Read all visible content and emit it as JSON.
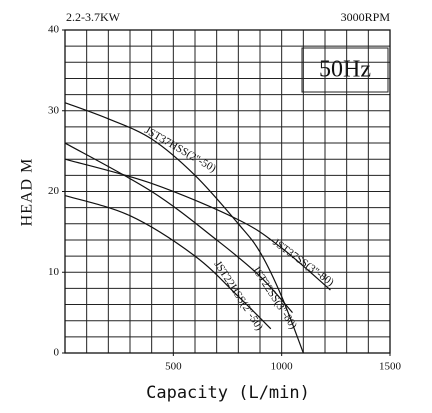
{
  "chart_data": {
    "type": "line",
    "title_left": "2.2-3.7KW",
    "title_right": "3000RPM",
    "frequency": "50Hz",
    "x_label": "Capacity (L/min)",
    "y_label": "HEAD M",
    "xlim": [
      0,
      1500
    ],
    "xticks": [
      500,
      1000,
      1500
    ],
    "ylim": [
      0,
      40
    ],
    "yticks": [
      0,
      10,
      20,
      30,
      40
    ],
    "grid": true,
    "series": [
      {
        "name": "JST37HSS(2\"-50)",
        "color": "#111111",
        "x": [
          0,
          200,
          400,
          600,
          800,
          900,
          1000,
          1100
        ],
        "values": [
          31,
          29,
          26.5,
          22,
          16,
          12.5,
          7,
          0
        ]
      },
      {
        "name": "JST37SS(3\"-80)",
        "color": "#111111",
        "x": [
          0,
          400,
          800,
          1000,
          1225
        ],
        "values": [
          24,
          21,
          16.5,
          13,
          7.8
        ]
      },
      {
        "name": "JST22SS(3\"-80)",
        "color": "#111111",
        "x": [
          0,
          400,
          700,
          900,
          1050
        ],
        "values": [
          26,
          20,
          14,
          9.5,
          5
        ]
      },
      {
        "name": "JST22HSS(2\"-50)",
        "color": "#111111",
        "x": [
          0,
          300,
          600,
          800,
          950
        ],
        "values": [
          19.5,
          17,
          12,
          7,
          3
        ]
      }
    ]
  }
}
